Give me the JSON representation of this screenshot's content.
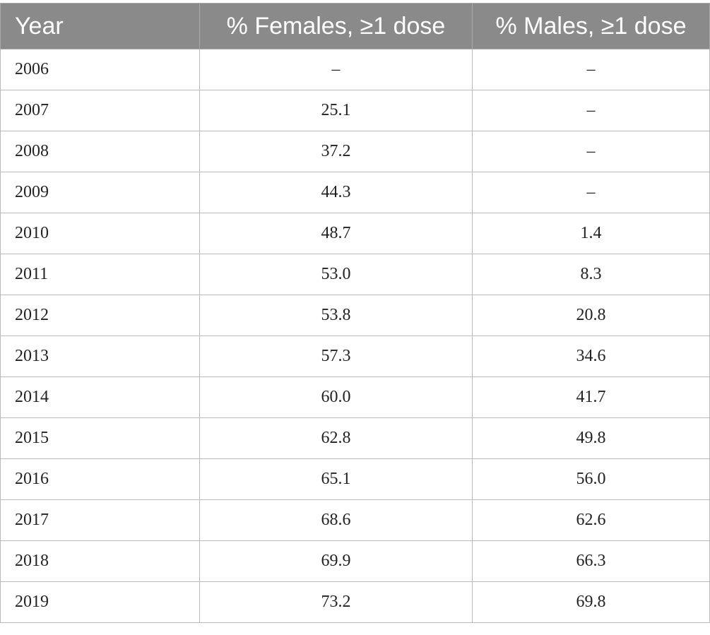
{
  "table": {
    "headers": [
      "Year",
      "% Females, ≥1 dose",
      "% Males, ≥1 dose"
    ],
    "rows": [
      [
        "2006",
        "–",
        "–"
      ],
      [
        "2007",
        "25.1",
        "–"
      ],
      [
        "2008",
        "37.2",
        "–"
      ],
      [
        "2009",
        "44.3",
        "–"
      ],
      [
        "2010",
        "48.7",
        "1.4"
      ],
      [
        "2011",
        "53.0",
        "8.3"
      ],
      [
        "2012",
        "53.8",
        "20.8"
      ],
      [
        "2013",
        "57.3",
        "34.6"
      ],
      [
        "2014",
        "60.0",
        "41.7"
      ],
      [
        "2015",
        "62.8",
        "49.8"
      ],
      [
        "2016",
        "65.1",
        "56.0"
      ],
      [
        "2017",
        "68.6",
        "62.6"
      ],
      [
        "2018",
        "69.9",
        "66.3"
      ],
      [
        "2019",
        "73.2",
        "69.8"
      ]
    ]
  },
  "colors": {
    "header_background": "#8a8a8a",
    "header_text": "#ffffff",
    "grid_line": "#b9b9b9",
    "body_text": "#222222"
  }
}
